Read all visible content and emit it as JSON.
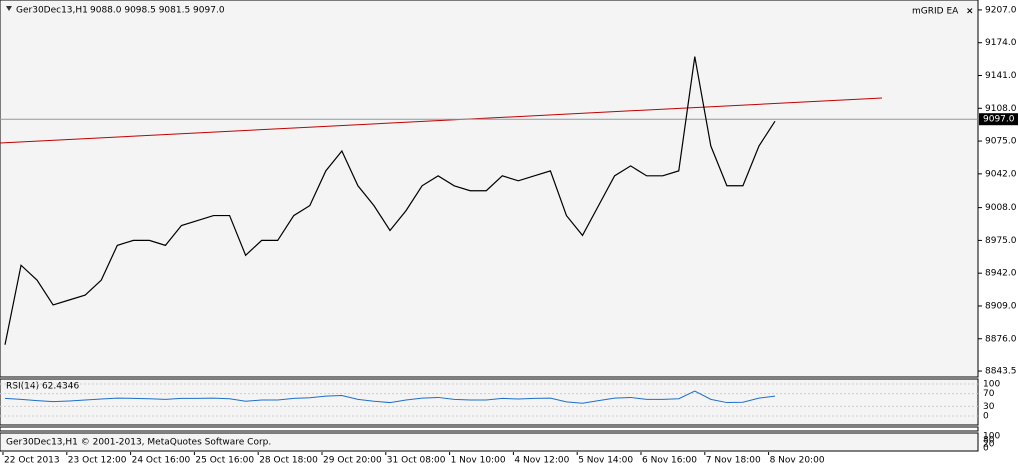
{
  "header": {
    "symbol": "Ger30Dec13,H1",
    "ohlc": "9088.0 9098.5 9081.5 9097.0",
    "expert": "mGRID EA",
    "close": "×"
  },
  "price_axis": {
    "ylim": [
      8837.5,
      9217
    ],
    "ticks": [
      {
        "value": 9207,
        "label": "9207.0"
      },
      {
        "value": 9174,
        "label": "9174.0"
      },
      {
        "value": 9141,
        "label": "9141.0"
      },
      {
        "value": 9108,
        "label": "9108.0"
      },
      {
        "value": 9075,
        "label": "9075.0"
      },
      {
        "value": 9042,
        "label": "9042.0"
      },
      {
        "value": 9008,
        "label": "9008.0"
      },
      {
        "value": 8975,
        "label": "8975.0"
      },
      {
        "value": 8942,
        "label": "8942.0"
      },
      {
        "value": 8909,
        "label": "8909.0"
      },
      {
        "value": 8876,
        "label": "8876.0"
      },
      8843.5
    ],
    "current": {
      "value": 9097,
      "label": "9097.0"
    }
  },
  "price_close": [
    8870,
    8950,
    8935,
    8910,
    8915,
    8920,
    8935,
    8970,
    8975,
    8975,
    8970,
    8990,
    8995,
    9000,
    9000,
    8960,
    8975,
    8975,
    9000,
    9010,
    9045,
    9065,
    9030,
    9010,
    8985,
    9005,
    9030,
    9040,
    9030,
    9025,
    9025,
    9040,
    9035,
    9040,
    9045,
    9000,
    8980,
    9010,
    9040,
    9050,
    9040,
    9040,
    9045,
    9160,
    9070,
    9030,
    9030,
    9070,
    9095
  ],
  "time_labels": [
    "22 Oct 2013",
    "23 Oct 12:00",
    "24 Oct 16:00",
    "25 Oct 16:00",
    "28 Oct 18:00",
    "29 Oct 20:00",
    "31 Oct 08:00",
    "1 Nov 10:00",
    "4 Nov 12:00",
    "5 Nov 14:00",
    "6 Nov 16:00",
    "7 Nov 18:00",
    "8 Nov 20:00"
  ],
  "rsi": {
    "label": "RSI(14) 62.4346",
    "ylim": [
      0,
      100
    ],
    "ticks": [
      100,
      70,
      30,
      0
    ],
    "values": [
      55,
      52,
      48,
      45,
      47,
      50,
      53,
      56,
      55,
      54,
      52,
      55,
      55,
      56,
      54,
      46,
      50,
      50,
      55,
      57,
      62,
      64,
      52,
      46,
      42,
      50,
      56,
      58,
      52,
      50,
      50,
      55,
      53,
      55,
      56,
      44,
      40,
      48,
      56,
      58,
      52,
      52,
      54,
      78,
      52,
      42,
      43,
      56,
      62
    ]
  },
  "stoch": {
    "ticks": [
      100,
      80,
      20,
      0
    ]
  },
  "copyright": "Ger30Dec13,H1 © 2001-2013, MetaQuotes Software Corp."
}
